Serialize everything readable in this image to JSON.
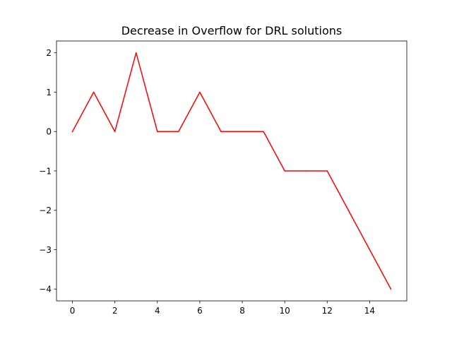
{
  "chart_data": {
    "type": "line",
    "title": "Decrease in Overflow for DRL solutions",
    "xlabel": "",
    "ylabel": "",
    "x": [
      0,
      1,
      2,
      3,
      4,
      5,
      6,
      7,
      8,
      9,
      10,
      11,
      12,
      13,
      14,
      15
    ],
    "series": [
      {
        "values": [
          0,
          1,
          0,
          2,
          0,
          0,
          1,
          0,
          0,
          0,
          -1,
          -1,
          -1,
          -2,
          -3,
          -4
        ],
        "color": "#ff0000"
      }
    ],
    "xlim": [
      -0.75,
      15.75
    ],
    "ylim": [
      -4.3,
      2.3
    ],
    "xticks": [
      0,
      2,
      4,
      6,
      8,
      10,
      12,
      14
    ],
    "xtick_labels": [
      "0",
      "2",
      "4",
      "6",
      "8",
      "10",
      "12",
      "14"
    ],
    "yticks": [
      -4,
      -3,
      -2,
      -1,
      0,
      1,
      2
    ],
    "ytick_labels": [
      "−4",
      "−3",
      "−2",
      "−1",
      "0",
      "1",
      "2"
    ],
    "grid": false,
    "legend": "none"
  }
}
